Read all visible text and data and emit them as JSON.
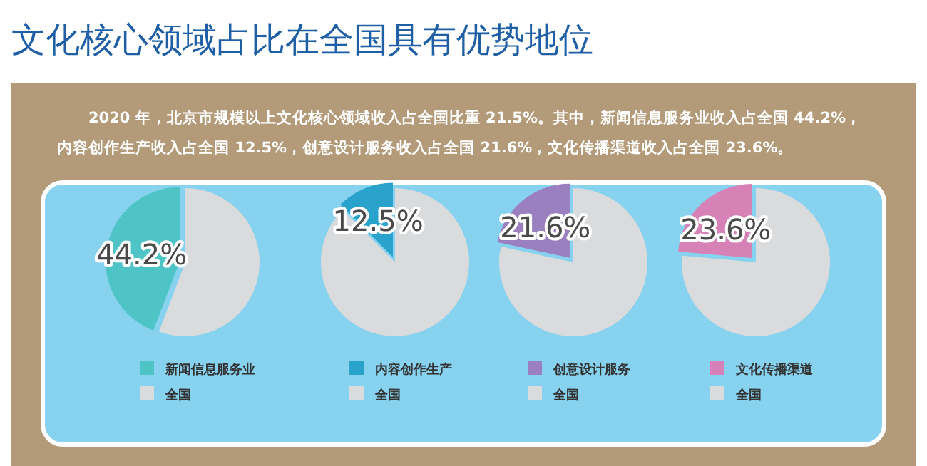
{
  "chart_data": [
    {
      "type": "pie",
      "title": "文化核心领域占比在全国具有优势地位",
      "annotations": [
        "2020 年，北京市规模以上文化核心领域收入占全国比重 21.5%。其中，新闻信息服务业收入占全国 44.2%，",
        "内容创作生产收入占全国 12.5%，创意设计服务收入占全国 21.6%，文化传播渠道收入占全国 23.6%。"
      ],
      "categories": [
        "新闻信息服务业",
        "全国"
      ],
      "values": [
        44.2,
        55.8
      ],
      "colors": [
        "#4fc4c6",
        "#d9dbdd"
      ],
      "value_labels": [
        "44.2%",
        null
      ],
      "legend": "bottom"
    },
    {
      "type": "pie",
      "categories": [
        "内容创作生产",
        "全国"
      ],
      "values": [
        12.5,
        87.5
      ],
      "colors": [
        "#29a2cc",
        "#d9dbdd"
      ],
      "value_labels": [
        "12.5%",
        null
      ],
      "legend": "bottom"
    },
    {
      "type": "pie",
      "categories": [
        "创意设计服务",
        "全国"
      ],
      "values": [
        21.6,
        78.4
      ],
      "colors": [
        "#9a80be",
        "#d9dbdd"
      ],
      "value_labels": [
        "21.6%",
        null
      ],
      "legend": "bottom"
    },
    {
      "type": "pie",
      "categories": [
        "文化传播渠道",
        "全国"
      ],
      "values": [
        23.6,
        76.4
      ],
      "colors": [
        "#d682b6",
        "#d9dbdd"
      ],
      "value_labels": [
        "23.6%",
        null
      ],
      "legend": "bottom"
    }
  ]
}
